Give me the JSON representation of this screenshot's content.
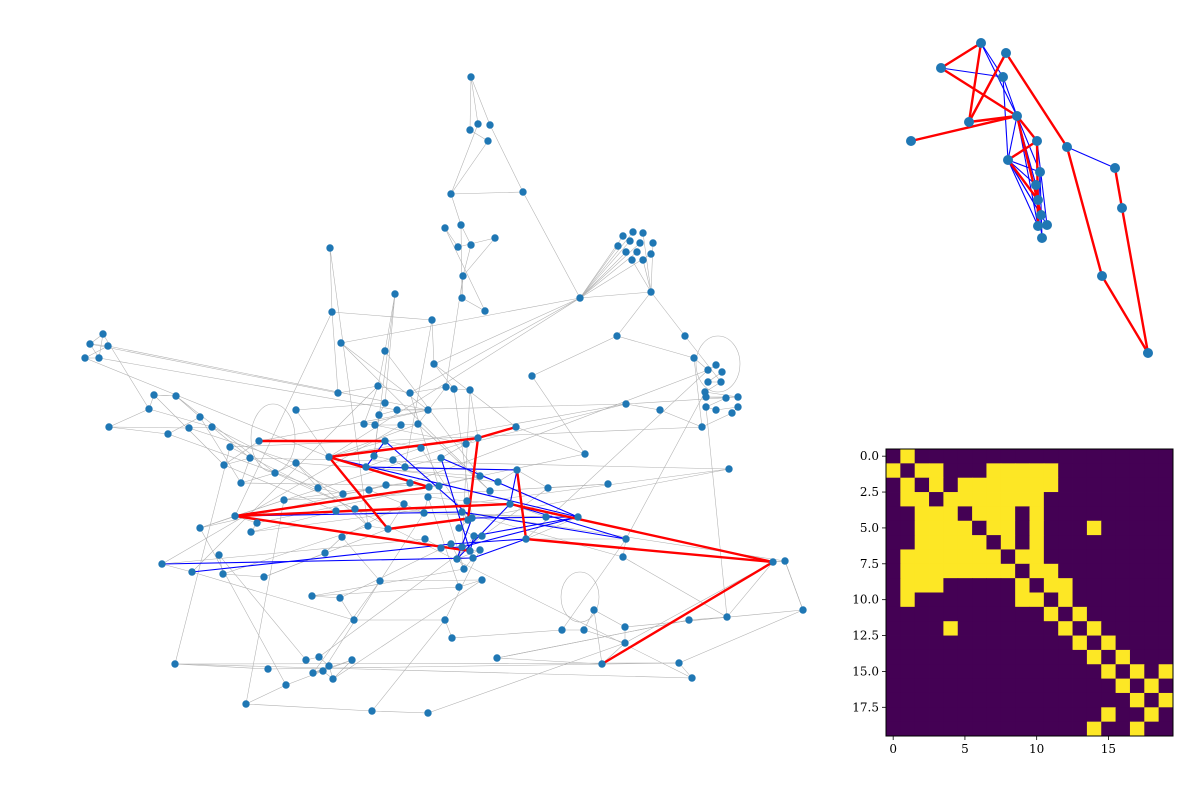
{
  "colors": {
    "node": "#1f77b4",
    "context_edge": "#b0b0b0",
    "highlight_edge": "#ff0000",
    "secondary_edge": "#0000ff",
    "matrix_on": "#fde725",
    "matrix_off": "#440154"
  },
  "matrix": {
    "size": 20,
    "x_ticks": [
      "0",
      "5",
      "10",
      "15"
    ],
    "y_ticks": [
      "0.0",
      "2.5",
      "5.0",
      "7.5",
      "10.0",
      "12.5",
      "15.0",
      "17.5"
    ],
    "rows": [
      "01000000000000000000",
      "10110001111100000000",
      "01010111111100000000",
      "01101111111000000000",
      "00111011101000000000",
      "00111101101000100000",
      "00111110101000000000",
      "01111111011000000000",
      "01111111101100000000",
      "01110000010110000000",
      "01000000011010000000",
      "00000000000101000000",
      "00001000000010100000",
      "00000000000001010000",
      "00000000000000101000",
      "00000000000000010101",
      "00000000000000001010",
      "00000000000000000101",
      "00000000000000010010",
      "00000000000000100100"
    ]
  }
}
